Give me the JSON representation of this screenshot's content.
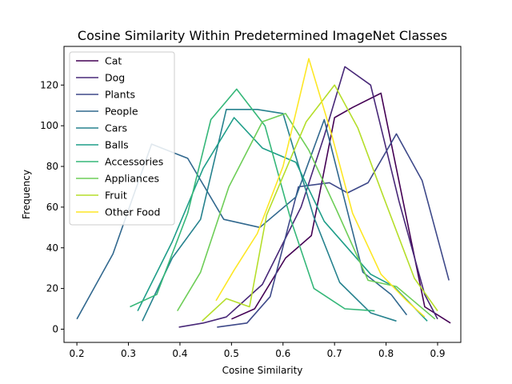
{
  "chart_data": {
    "type": "line",
    "title": "Cosine Similarity Within Predetermined ImageNet Classes",
    "xlabel": "Cosine Similarity",
    "ylabel": "Frequency",
    "xlim": [
      0.175,
      0.945
    ],
    "ylim": [
      -6.5,
      139
    ],
    "xticks": [
      0.2,
      0.3,
      0.4,
      0.5,
      0.6,
      0.7,
      0.8,
      0.9
    ],
    "yticks": [
      0,
      20,
      40,
      60,
      80,
      100,
      120
    ],
    "grid": false,
    "legend_position": "top-left",
    "series": [
      {
        "name": "Cat",
        "color": "#440154",
        "x": [
          0.5,
          0.545,
          0.605,
          0.655,
          0.7,
          0.735,
          0.79,
          0.875,
          0.925
        ],
        "y": [
          5,
          10,
          35,
          46,
          104,
          109,
          116,
          11,
          3
        ]
      },
      {
        "name": "Dog",
        "color": "#482878",
        "x": [
          0.398,
          0.445,
          0.49,
          0.56,
          0.635,
          0.68,
          0.72,
          0.77,
          0.825,
          0.875,
          0.9
        ],
        "y": [
          1,
          3,
          6,
          22,
          60,
          95,
          129,
          120,
          63,
          17,
          5
        ]
      },
      {
        "name": "Plants",
        "color": "#3e4989",
        "x": [
          0.472,
          0.53,
          0.575,
          0.63,
          0.69,
          0.725,
          0.765,
          0.82,
          0.87,
          0.922
        ],
        "y": [
          1,
          3,
          16,
          70,
          72,
          67,
          72,
          96,
          73,
          24
        ]
      },
      {
        "name": "People",
        "color": "#31688e",
        "x": [
          0.2,
          0.27,
          0.345,
          0.415,
          0.485,
          0.555,
          0.625,
          0.68,
          0.755,
          0.81,
          0.84
        ],
        "y": [
          5,
          37,
          91,
          84,
          54,
          50,
          65,
          103,
          28,
          17,
          7
        ]
      },
      {
        "name": "Cars",
        "color": "#26828e",
        "x": [
          0.327,
          0.385,
          0.44,
          0.49,
          0.55,
          0.6,
          0.66,
          0.71,
          0.77,
          0.82
        ],
        "y": [
          4,
          35,
          54,
          108,
          108,
          106,
          55,
          23,
          8,
          4
        ]
      },
      {
        "name": "Balls",
        "color": "#1f9e89",
        "x": [
          0.318,
          0.385,
          0.445,
          0.505,
          0.56,
          0.625,
          0.68,
          0.77,
          0.815,
          0.88
        ],
        "y": [
          9,
          43,
          79,
          104,
          89,
          82,
          53,
          27,
          21,
          4
        ]
      },
      {
        "name": "Accessories",
        "color": "#35b779",
        "x": [
          0.303,
          0.355,
          0.415,
          0.46,
          0.51,
          0.565,
          0.615,
          0.66,
          0.72,
          0.778
        ],
        "y": [
          11,
          17,
          57,
          103,
          118,
          100,
          54,
          20,
          10,
          9
        ]
      },
      {
        "name": "Appliances",
        "color": "#6ece58",
        "x": [
          0.395,
          0.44,
          0.495,
          0.56,
          0.605,
          0.65,
          0.705,
          0.765,
          0.82,
          0.895
        ],
        "y": [
          9,
          28,
          70,
          102,
          106,
          88,
          58,
          24,
          21,
          5
        ]
      },
      {
        "name": "Fruit",
        "color": "#b5de2b",
        "x": [
          0.443,
          0.49,
          0.535,
          0.568,
          0.645,
          0.7,
          0.745,
          0.795,
          0.855,
          0.9
        ],
        "y": [
          4,
          15,
          11,
          56,
          102,
          120,
          99,
          65,
          25,
          9
        ]
      },
      {
        "name": "Other Food",
        "color": "#fde725",
        "x": [
          0.47,
          0.505,
          0.55,
          0.6,
          0.65,
          0.695,
          0.735,
          0.79,
          0.84,
          0.875
        ],
        "y": [
          14,
          29,
          47,
          80,
          133,
          95,
          57,
          27,
          14,
          6
        ]
      }
    ]
  }
}
